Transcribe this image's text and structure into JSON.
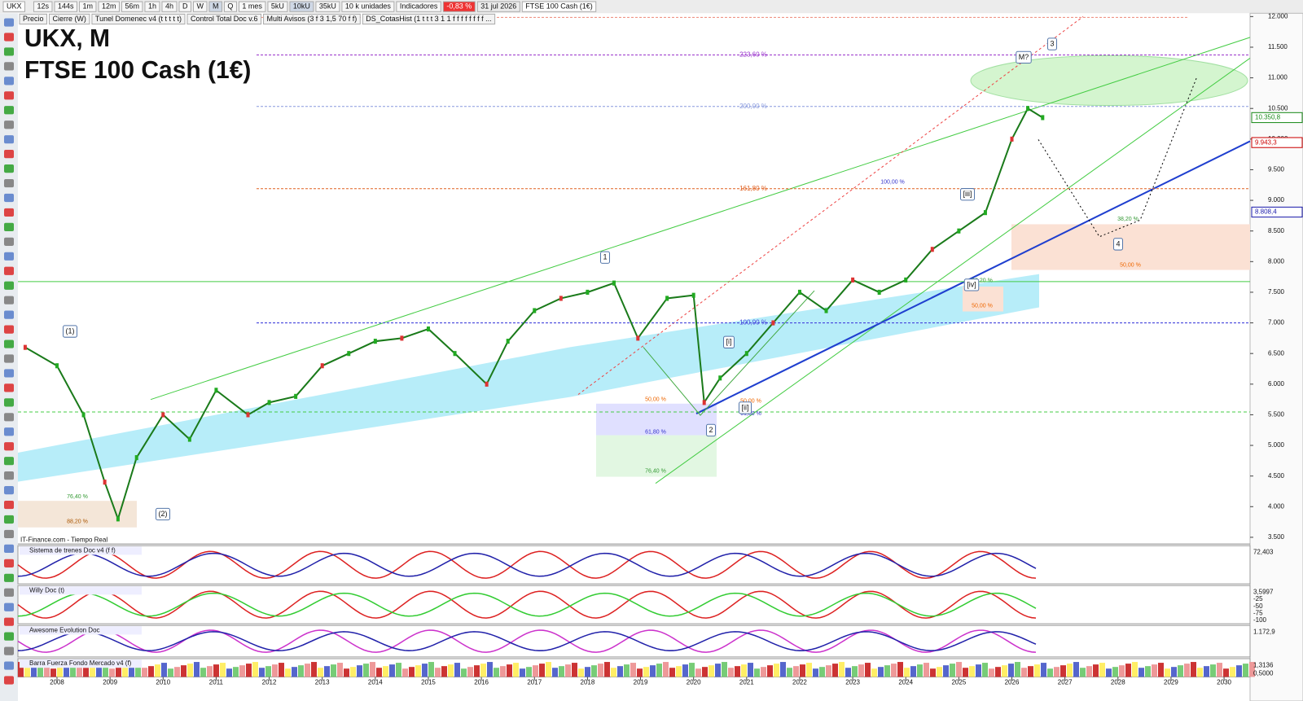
{
  "toolbar": {
    "symbol": "UKX",
    "timeframes": [
      "12s",
      "144s",
      "1m",
      "12m",
      "56m",
      "1h",
      "4h",
      "D",
      "W",
      "M",
      "Q"
    ],
    "period": "1 mes",
    "units": [
      "5kU",
      "10kU",
      "35kU"
    ],
    "unit_size": "10 k unidades",
    "indicators": "Indicadores",
    "change": "-0,83 %",
    "date": "31 jul 2026",
    "instrument": "FTSE 100 Cash (1€)"
  },
  "tabs": [
    "Precio",
    "Cierre (W)",
    "Tunel Domenec v4 (t t t t t)",
    "Control Total Doc v.6",
    "Multi Avisos (3 f 3 1,5 70 f f)",
    "DS_CotasHist (1 t t t 3 1 1 f f f f f f f f ..."
  ],
  "chart": {
    "symbol_line": "UKX, M",
    "name": "FTSE 100 Cash (1€)",
    "source": "IT-Finance.com - Tiempo Real",
    "x": [
      2007.4,
      2008.0,
      2008.5,
      2008.9,
      2009.15,
      2009.5,
      2010.0,
      2010.5,
      2011.0,
      2011.6,
      2012.0,
      2012.5,
      2013.0,
      2013.5,
      2014.0,
      2014.5,
      2015.0,
      2015.5,
      2016.1,
      2016.5,
      2017.0,
      2017.5,
      2018.0,
      2018.5,
      2018.95,
      2019.5,
      2020.0,
      2020.2,
      2020.5,
      2021.0,
      2021.5,
      2022.0,
      2022.5,
      2023.0,
      2023.5,
      2024.0,
      2024.5,
      2025.0,
      2025.5,
      2026.0,
      2026.3,
      2026.58
    ],
    "close": [
      6600,
      6300,
      5500,
      4400,
      3800,
      4800,
      5500,
      5100,
      5900,
      5500,
      5700,
      5800,
      6300,
      6500,
      6700,
      6750,
      6900,
      6500,
      6000,
      6700,
      7200,
      7400,
      7500,
      7650,
      6750,
      7400,
      7450,
      5700,
      6100,
      6500,
      7000,
      7500,
      7200,
      7700,
      7500,
      7700,
      8200,
      8500,
      8800,
      10000,
      10500,
      10350.8
    ],
    "xlim": [
      2007.3,
      2030.6
    ],
    "xticks": [
      2008,
      2009,
      2010,
      2011,
      2012,
      2013,
      2014,
      2015,
      2016,
      2017,
      2018,
      2019,
      2020,
      2021,
      2022,
      2023,
      2024,
      2025,
      2026,
      2027,
      2028,
      2029,
      2030
    ],
    "ylim": [
      3390,
      12040
    ],
    "yticks": [
      {
        "value": 3500,
        "label": "3.500"
      },
      {
        "value": 4000,
        "label": "4.000"
      },
      {
        "value": 4500,
        "label": "4.500"
      },
      {
        "value": 5000,
        "label": "5.000"
      },
      {
        "value": 5500,
        "label": "5.500"
      },
      {
        "value": 6000,
        "label": "6.000"
      },
      {
        "value": 6500,
        "label": "6.500"
      },
      {
        "value": 7000,
        "label": "7.000"
      },
      {
        "value": 7500,
        "label": "7.500"
      },
      {
        "value": 8000,
        "label": "8.000"
      },
      {
        "value": 8500,
        "label": "8.500"
      },
      {
        "value": 9000,
        "label": "9.000"
      },
      {
        "value": 9500,
        "label": "9.500"
      },
      {
        "value": 10000,
        "label": "10.000"
      },
      {
        "value": 10500,
        "label": "10.500"
      },
      {
        "value": 11000,
        "label": "11.000"
      },
      {
        "value": 11500,
        "label": "11.500"
      },
      {
        "value": 12000,
        "label": "12.000"
      }
    ],
    "price_labels": [
      {
        "value": 10350.8,
        "label": "10.350,8",
        "color": "#1a8a1a"
      },
      {
        "value": 9943.3,
        "label": "9.943,3",
        "color": "#cc0000"
      },
      {
        "value": 8808.4,
        "label": "8.808,4",
        "color": "#1a1aaa"
      }
    ],
    "levels": [
      {
        "value": 11373,
        "label": "223,60 %",
        "color": "#9933cc"
      },
      {
        "value": 10533,
        "label": "200,00 %",
        "color": "#8899dd"
      },
      {
        "value": 9191,
        "label": "161,80 %",
        "color": "#e06020"
      },
      {
        "value": 7000,
        "label": "100,00 %",
        "color": "#4444dd"
      }
    ],
    "fib_labels": [
      "100,00 %",
      "38,20 %",
      "50,00 %",
      "50,00 %",
      "61,80 %",
      "76,40 %",
      "76,40 %",
      "88,20 %",
      "50,00 %",
      "61,80 %",
      "38,20 %",
      "50,00 %"
    ],
    "wave_labels": [
      "(1)",
      "(2)",
      "1",
      "2",
      "3",
      "4",
      "[i]",
      "[ii]",
      "[iii]",
      "[iv]",
      "M?"
    ]
  },
  "panels": [
    {
      "title": "Sistema de trenes Doc v4 (f f)",
      "labels": [
        "72,403"
      ]
    },
    {
      "title": "Willy Doc (t)",
      "labels": [
        "3,5997",
        "-25",
        "-50",
        "-75",
        "-100"
      ]
    },
    {
      "title": "Awesome Evolution Doc",
      "labels": [
        "1.172,9"
      ]
    },
    {
      "title": "Barra Fuerza Fondo Mercado v4 (f)",
      "labels": [
        "1,3136",
        "0,5000"
      ]
    }
  ]
}
